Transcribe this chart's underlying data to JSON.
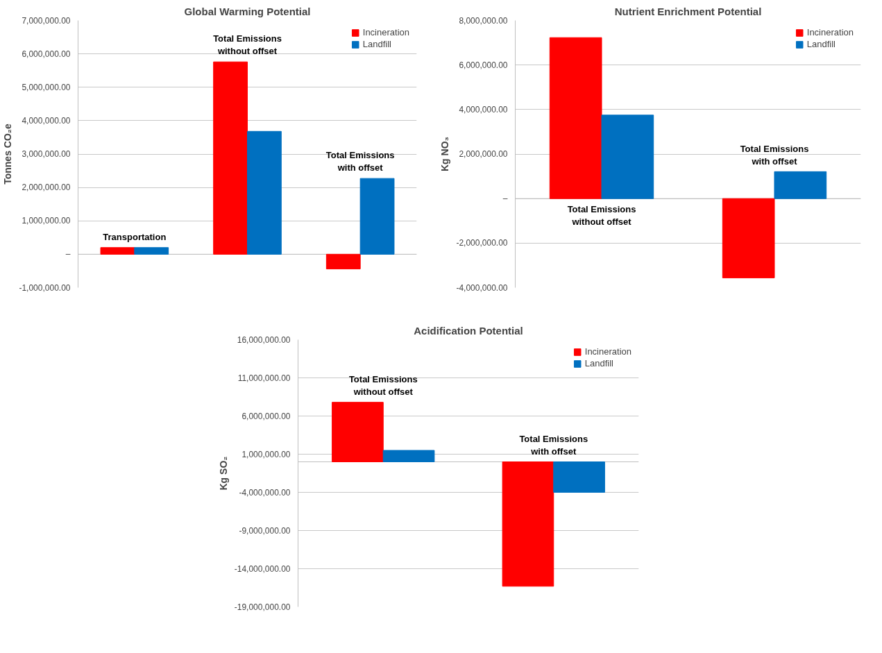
{
  "chart_data": [
    {
      "type": "bar",
      "title": "Global Warming Potential",
      "ylabel": "Tonnes CO₂e",
      "categories": [
        "Transportation",
        "Total Emissions\nwithout offset",
        "Total Emissions\nwith offset"
      ],
      "series": [
        {
          "name": "Incineration",
          "color": "#ff0000",
          "values": [
            200000,
            5760000,
            -440000
          ]
        },
        {
          "name": "Landfill",
          "color": "#0070c0",
          "values": [
            200000,
            3680000,
            2270000
          ]
        }
      ],
      "ylim": [
        -1000000,
        7000000
      ],
      "yticks": [
        {
          "value": -1000000,
          "label": "-1,000,000.00"
        },
        {
          "value": 0,
          "label": "–"
        },
        {
          "value": 1000000,
          "label": "1,000,000.00"
        },
        {
          "value": 2000000,
          "label": "2,000,000.00"
        },
        {
          "value": 3000000,
          "label": "3,000,000.00"
        },
        {
          "value": 4000000,
          "label": "4,000,000.00"
        },
        {
          "value": 5000000,
          "label": "5,000,000.00"
        },
        {
          "value": 6000000,
          "label": "6,000,000.00"
        },
        {
          "value": 7000000,
          "label": "7,000,000.00"
        }
      ],
      "grid": "y",
      "legend": "top right"
    },
    {
      "type": "bar",
      "title": "Nutrient Enrichment Potential",
      "ylabel": "Kg NO₃",
      "categories": [
        "Total Emissions\nwithout offset",
        "Total Emissions\nwith offset"
      ],
      "series": [
        {
          "name": "Incineration",
          "color": "#ff0000",
          "values": [
            7230000,
            -3560000
          ]
        },
        {
          "name": "Landfill",
          "color": "#0070c0",
          "values": [
            3750000,
            1210000
          ]
        }
      ],
      "ylim": [
        -4000000,
        8000000
      ],
      "yticks": [
        {
          "value": -4000000,
          "label": "-4,000,000.00"
        },
        {
          "value": -2000000,
          "label": "-2,000,000.00"
        },
        {
          "value": 0,
          "label": "–"
        },
        {
          "value": 2000000,
          "label": "2,000,000.00"
        },
        {
          "value": 4000000,
          "label": "4,000,000.00"
        },
        {
          "value": 6000000,
          "label": "6,000,000.00"
        },
        {
          "value": 8000000,
          "label": "8,000,000.00"
        }
      ],
      "grid": "y",
      "legend": "top right"
    },
    {
      "type": "bar",
      "title": "Acidification Potential",
      "ylabel": "Kg SO₂",
      "categories": [
        "Total Emissions\nwithout offset",
        "Total Emissions\nwith offset"
      ],
      "series": [
        {
          "name": "Incineration",
          "color": "#ff0000",
          "values": [
            7800000,
            -16300000
          ]
        },
        {
          "name": "Landfill",
          "color": "#0070c0",
          "values": [
            1500000,
            -4000000
          ]
        }
      ],
      "ylim": [
        -19000000,
        16000000
      ],
      "yticks": [
        {
          "value": -19000000,
          "label": "-19,000,000.00"
        },
        {
          "value": -14000000,
          "label": "-14,000,000.00"
        },
        {
          "value": -9000000,
          "label": "-9,000,000.00"
        },
        {
          "value": -4000000,
          "label": "-4,000,000.00"
        },
        {
          "value": 1000000,
          "label": "1,000,000.00"
        },
        {
          "value": 6000000,
          "label": "6,000,000.00"
        },
        {
          "value": 11000000,
          "label": "11,000,000.00"
        },
        {
          "value": 16000000,
          "label": "16,000,000.00"
        }
      ],
      "grid": "y",
      "legend": "top right"
    }
  ]
}
